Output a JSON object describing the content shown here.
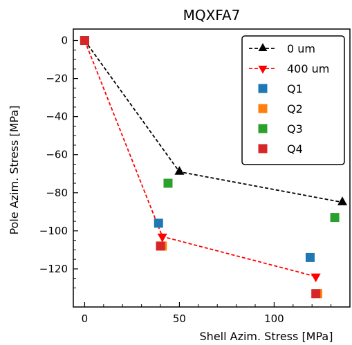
{
  "chart_data": {
    "type": "scatter",
    "title": "MQXFA7",
    "xlabel": "Shell Azim. Stress [MPa]",
    "ylabel": "Pole Azim. Stress [MPa]",
    "xlim": [
      -6,
      140
    ],
    "ylim": [
      -140,
      6
    ],
    "xticks": [
      0,
      50,
      100
    ],
    "yticks": [
      0,
      -20,
      -40,
      -60,
      -80,
      -100,
      -120
    ],
    "grid": false,
    "legend_position": "top-right",
    "series": [
      {
        "name": "0 um",
        "kind": "line",
        "marker": "triangle-up",
        "color": "#000000",
        "x": [
          0,
          50,
          136
        ],
        "y": [
          0,
          -69,
          -85
        ]
      },
      {
        "name": "400 um",
        "kind": "line",
        "marker": "triangle-down",
        "color": "#ff0000",
        "x": [
          0,
          41,
          122
        ],
        "y": [
          0,
          -103,
          -124
        ]
      },
      {
        "name": "Q1",
        "kind": "scatter",
        "marker": "square",
        "color": "#1f77b4",
        "x": [
          0,
          39,
          119
        ],
        "y": [
          0,
          -96,
          -114
        ]
      },
      {
        "name": "Q2",
        "kind": "scatter",
        "marker": "square",
        "color": "#ff7f0e",
        "x": [
          0,
          41,
          123
        ],
        "y": [
          0,
          -108,
          -133
        ]
      },
      {
        "name": "Q3",
        "kind": "scatter",
        "marker": "square",
        "color": "#2ca02c",
        "x": [
          0,
          44,
          132
        ],
        "y": [
          0,
          -75,
          -93
        ]
      },
      {
        "name": "Q4",
        "kind": "scatter",
        "marker": "square",
        "color": "#d62728",
        "x": [
          0,
          40,
          122
        ],
        "y": [
          0,
          -108,
          -133
        ]
      }
    ]
  }
}
